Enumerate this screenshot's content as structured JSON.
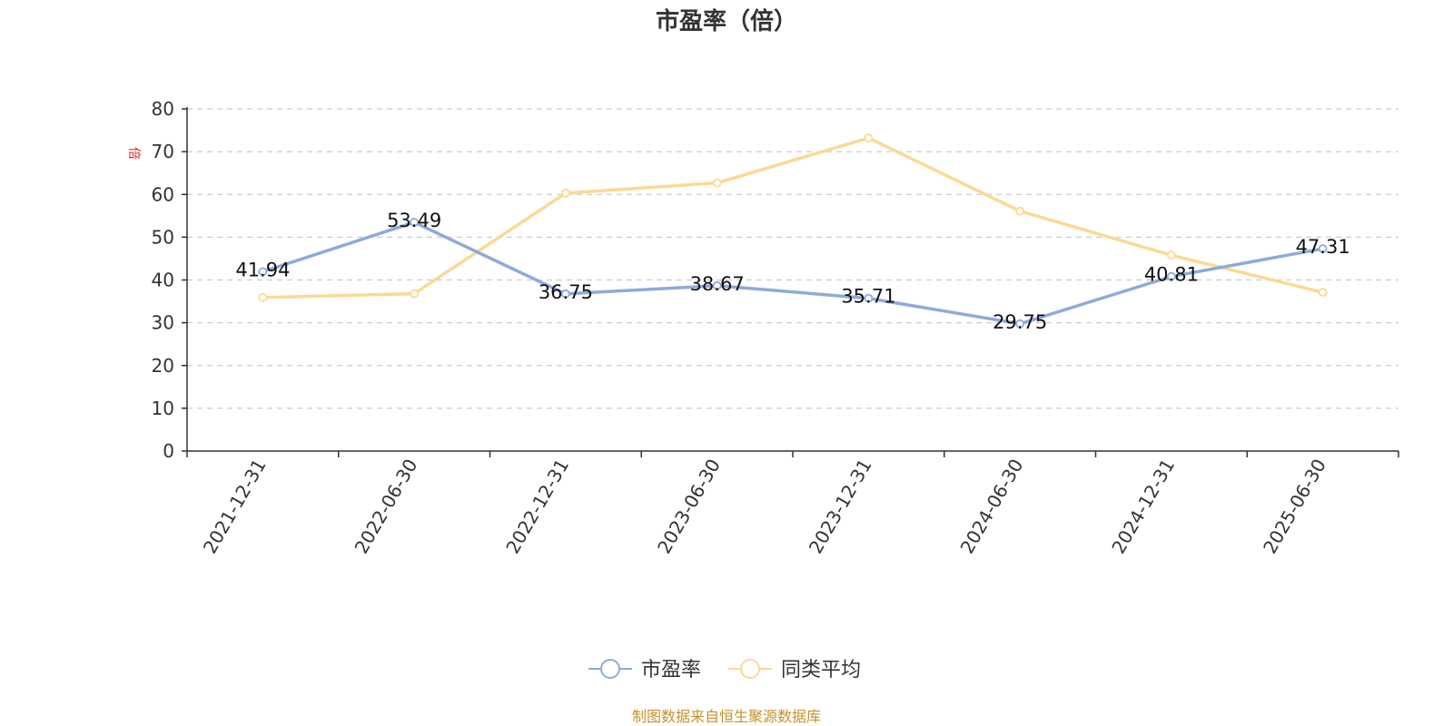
{
  "title": "市盈率（倍）",
  "source": "制图数据来自恒生聚源数据库",
  "colors": {
    "series1": "#8eaad8",
    "series2": "#fcd993",
    "grid": "#cccccc",
    "axis": "#333333",
    "unit": "#e02020",
    "source": "#c8902a"
  },
  "chart_data": {
    "type": "line",
    "title": "市盈率（倍）",
    "ylabel": "倍",
    "ylim": [
      0,
      80
    ],
    "yticks": [
      0,
      10,
      20,
      30,
      40,
      50,
      60,
      70,
      80
    ],
    "grid": true,
    "legend_position": "bottom-center",
    "x": [
      "2021-12-31",
      "2022-06-30",
      "2022-12-31",
      "2023-06-30",
      "2023-12-31",
      "2024-06-30",
      "2024-12-31",
      "2025-06-30"
    ],
    "series": [
      {
        "name": "市盈率",
        "values": [
          41.94,
          53.49,
          36.75,
          38.67,
          35.71,
          29.75,
          40.81,
          47.31
        ],
        "labels": [
          "41.94",
          "53.49",
          "36.75",
          "38.67",
          "35.71",
          "29.75",
          "40.81",
          "47.31"
        ]
      },
      {
        "name": "同类平均",
        "values": [
          35.9,
          36.8,
          60.3,
          62.7,
          73.2,
          56.1,
          45.8,
          37.1
        ]
      }
    ]
  }
}
